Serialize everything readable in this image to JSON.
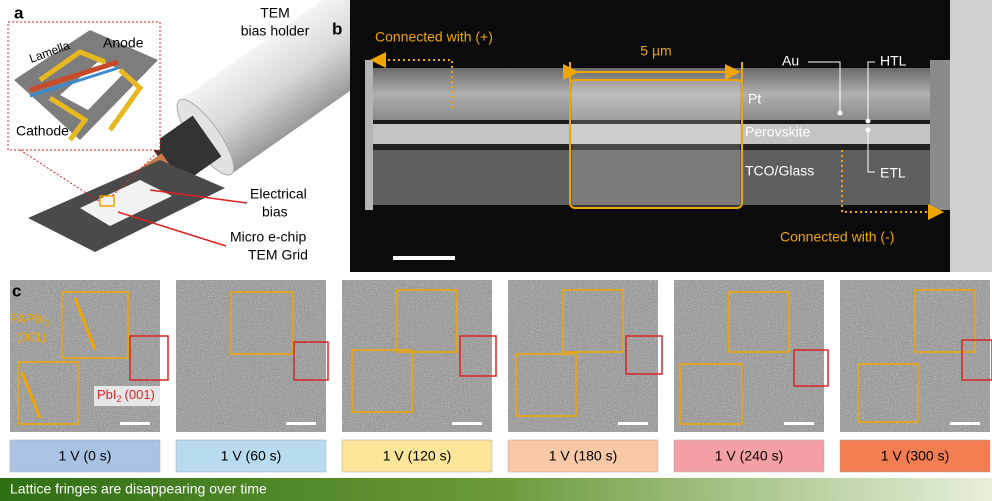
{
  "panel_a": {
    "label": "a",
    "holder_label": [
      "TEM",
      "bias holder"
    ],
    "lamella": "Lamella",
    "anode": "Anode",
    "cathode": "Cathode",
    "bias_label": [
      "Electrical",
      "bias"
    ],
    "chip_label": [
      "Micro e-chip",
      "TEM Grid"
    ]
  },
  "panel_b": {
    "label": "b",
    "positive": "Connected with (+)",
    "scale": "5 µm",
    "layers": {
      "au": "Au",
      "htl": "HTL",
      "pt": "Pt",
      "perovskite": "Perovskite",
      "tco": "TCO/Glass",
      "etl": "ETL"
    },
    "negative": "Connected with (-)"
  },
  "panel_c": {
    "label": "c",
    "fapbi3": {
      "main": "FAPbI",
      "sub": "3",
      "plane": "(001)"
    },
    "pbi2": {
      "main": "PbI",
      "sub": "2",
      "plane": "(001)"
    },
    "frames": [
      "1 V (0 s)",
      "1 V (60 s)",
      "1 V (120 s)",
      "1 V (180 s)",
      "1 V (240 s)",
      "1 V (300 s)"
    ],
    "caption": "Lattice fringes are disappearing over time"
  }
}
